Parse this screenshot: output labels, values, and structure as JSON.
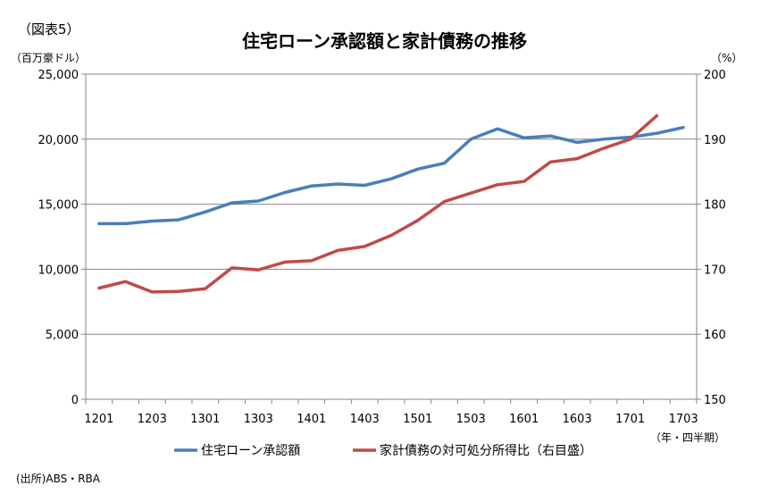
{
  "figure_label": "（図表5）",
  "source_note": "(出所)ABS・RBA",
  "chart_data": {
    "type": "line",
    "title": "住宅ローン承認額と家計債務の推移",
    "left_axis_unit": "（百万豪ドル）",
    "right_axis_unit": "（%）",
    "x_axis_unit": "（年・四半期）",
    "x": [
      "1201",
      "1202",
      "1203",
      "1204",
      "1301",
      "1302",
      "1303",
      "1304",
      "1401",
      "1402",
      "1403",
      "1404",
      "1501",
      "1502",
      "1503",
      "1504",
      "1601",
      "1602",
      "1603",
      "1604",
      "1701",
      "1702",
      "1703"
    ],
    "x_tick_labels": [
      "1201",
      "1203",
      "1301",
      "1303",
      "1401",
      "1403",
      "1501",
      "1503",
      "1601",
      "1603",
      "1701",
      "1703"
    ],
    "y_left_ticks": [
      "25,000",
      "20,000",
      "15,000",
      "10,000",
      "5,000",
      "0"
    ],
    "y_left_lim": [
      0,
      25000
    ],
    "y_right_ticks": [
      "200",
      "190",
      "180",
      "170",
      "160",
      "150"
    ],
    "y_right_lim": [
      150,
      200
    ],
    "grid": "horizontal",
    "legend_position": "bottom",
    "series": [
      {
        "name": "住宅ローン承認額",
        "axis": "left",
        "color": "#4a7ebb",
        "values": [
          13500,
          13500,
          13700,
          13800,
          14400,
          15100,
          15250,
          15900,
          16400,
          16550,
          16450,
          16950,
          17700,
          18150,
          20000,
          20800,
          20100,
          20250,
          19750,
          20000,
          20150,
          20450,
          20900
        ]
      },
      {
        "name": "家計債務の対可処分所得比（右目盛）",
        "axis": "right",
        "color": "#be4b48",
        "values": [
          167.1,
          168.1,
          166.5,
          166.6,
          167.0,
          170.2,
          169.9,
          171.1,
          171.3,
          172.9,
          173.5,
          175.2,
          177.5,
          180.4,
          181.7,
          183.0,
          183.5,
          186.5,
          187.0,
          188.6,
          190.0,
          193.6,
          null
        ]
      }
    ]
  }
}
